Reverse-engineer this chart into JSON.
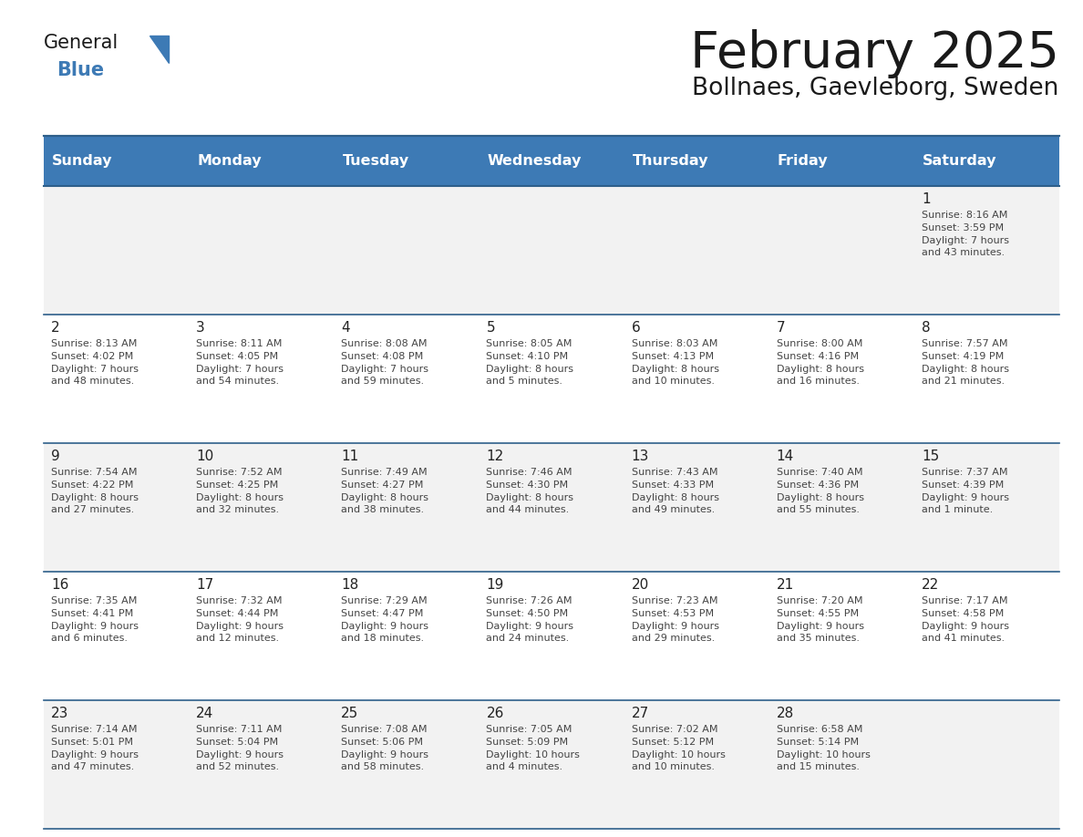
{
  "title": "February 2025",
  "subtitle": "Bollnaes, Gaevleborg, Sweden",
  "header_bg": "#3d7ab5",
  "header_text_color": "#ffffff",
  "days_of_week": [
    "Sunday",
    "Monday",
    "Tuesday",
    "Wednesday",
    "Thursday",
    "Friday",
    "Saturday"
  ],
  "row_bg_even": "#f2f2f2",
  "row_bg_odd": "#ffffff",
  "cell_border_color": "#2e5f8a",
  "day_num_color": "#222222",
  "info_text_color": "#444444",
  "logo_general_color": "#1a1a1a",
  "logo_blue_color": "#3d7ab5",
  "logo_triangle_color": "#3d7ab5",
  "title_color": "#1a1a1a",
  "subtitle_color": "#1a1a1a",
  "calendar_data": [
    [
      {
        "day": null,
        "info": ""
      },
      {
        "day": null,
        "info": ""
      },
      {
        "day": null,
        "info": ""
      },
      {
        "day": null,
        "info": ""
      },
      {
        "day": null,
        "info": ""
      },
      {
        "day": null,
        "info": ""
      },
      {
        "day": 1,
        "info": "Sunrise: 8:16 AM\nSunset: 3:59 PM\nDaylight: 7 hours\nand 43 minutes."
      }
    ],
    [
      {
        "day": 2,
        "info": "Sunrise: 8:13 AM\nSunset: 4:02 PM\nDaylight: 7 hours\nand 48 minutes."
      },
      {
        "day": 3,
        "info": "Sunrise: 8:11 AM\nSunset: 4:05 PM\nDaylight: 7 hours\nand 54 minutes."
      },
      {
        "day": 4,
        "info": "Sunrise: 8:08 AM\nSunset: 4:08 PM\nDaylight: 7 hours\nand 59 minutes."
      },
      {
        "day": 5,
        "info": "Sunrise: 8:05 AM\nSunset: 4:10 PM\nDaylight: 8 hours\nand 5 minutes."
      },
      {
        "day": 6,
        "info": "Sunrise: 8:03 AM\nSunset: 4:13 PM\nDaylight: 8 hours\nand 10 minutes."
      },
      {
        "day": 7,
        "info": "Sunrise: 8:00 AM\nSunset: 4:16 PM\nDaylight: 8 hours\nand 16 minutes."
      },
      {
        "day": 8,
        "info": "Sunrise: 7:57 AM\nSunset: 4:19 PM\nDaylight: 8 hours\nand 21 minutes."
      }
    ],
    [
      {
        "day": 9,
        "info": "Sunrise: 7:54 AM\nSunset: 4:22 PM\nDaylight: 8 hours\nand 27 minutes."
      },
      {
        "day": 10,
        "info": "Sunrise: 7:52 AM\nSunset: 4:25 PM\nDaylight: 8 hours\nand 32 minutes."
      },
      {
        "day": 11,
        "info": "Sunrise: 7:49 AM\nSunset: 4:27 PM\nDaylight: 8 hours\nand 38 minutes."
      },
      {
        "day": 12,
        "info": "Sunrise: 7:46 AM\nSunset: 4:30 PM\nDaylight: 8 hours\nand 44 minutes."
      },
      {
        "day": 13,
        "info": "Sunrise: 7:43 AM\nSunset: 4:33 PM\nDaylight: 8 hours\nand 49 minutes."
      },
      {
        "day": 14,
        "info": "Sunrise: 7:40 AM\nSunset: 4:36 PM\nDaylight: 8 hours\nand 55 minutes."
      },
      {
        "day": 15,
        "info": "Sunrise: 7:37 AM\nSunset: 4:39 PM\nDaylight: 9 hours\nand 1 minute."
      }
    ],
    [
      {
        "day": 16,
        "info": "Sunrise: 7:35 AM\nSunset: 4:41 PM\nDaylight: 9 hours\nand 6 minutes."
      },
      {
        "day": 17,
        "info": "Sunrise: 7:32 AM\nSunset: 4:44 PM\nDaylight: 9 hours\nand 12 minutes."
      },
      {
        "day": 18,
        "info": "Sunrise: 7:29 AM\nSunset: 4:47 PM\nDaylight: 9 hours\nand 18 minutes."
      },
      {
        "day": 19,
        "info": "Sunrise: 7:26 AM\nSunset: 4:50 PM\nDaylight: 9 hours\nand 24 minutes."
      },
      {
        "day": 20,
        "info": "Sunrise: 7:23 AM\nSunset: 4:53 PM\nDaylight: 9 hours\nand 29 minutes."
      },
      {
        "day": 21,
        "info": "Sunrise: 7:20 AM\nSunset: 4:55 PM\nDaylight: 9 hours\nand 35 minutes."
      },
      {
        "day": 22,
        "info": "Sunrise: 7:17 AM\nSunset: 4:58 PM\nDaylight: 9 hours\nand 41 minutes."
      }
    ],
    [
      {
        "day": 23,
        "info": "Sunrise: 7:14 AM\nSunset: 5:01 PM\nDaylight: 9 hours\nand 47 minutes."
      },
      {
        "day": 24,
        "info": "Sunrise: 7:11 AM\nSunset: 5:04 PM\nDaylight: 9 hours\nand 52 minutes."
      },
      {
        "day": 25,
        "info": "Sunrise: 7:08 AM\nSunset: 5:06 PM\nDaylight: 9 hours\nand 58 minutes."
      },
      {
        "day": 26,
        "info": "Sunrise: 7:05 AM\nSunset: 5:09 PM\nDaylight: 10 hours\nand 4 minutes."
      },
      {
        "day": 27,
        "info": "Sunrise: 7:02 AM\nSunset: 5:12 PM\nDaylight: 10 hours\nand 10 minutes."
      },
      {
        "day": 28,
        "info": "Sunrise: 6:58 AM\nSunset: 5:14 PM\nDaylight: 10 hours\nand 15 minutes."
      },
      {
        "day": null,
        "info": ""
      }
    ]
  ]
}
